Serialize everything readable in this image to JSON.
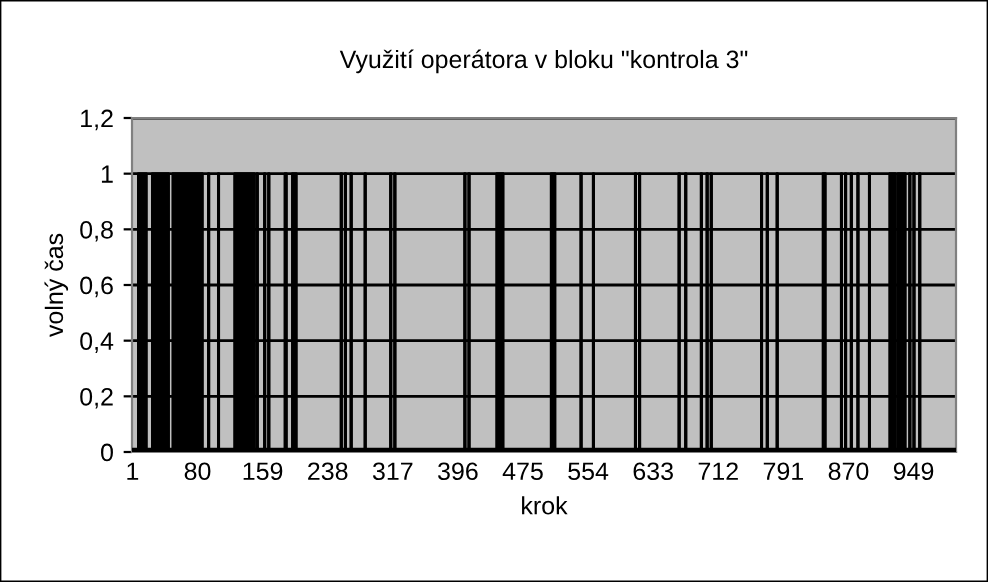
{
  "chart_data": {
    "type": "area",
    "title": "Využití operátora v bloku \"kontrola 3\"",
    "xlabel": "krok",
    "ylabel": "volný čas",
    "x": [
      1,
      8,
      8,
      18,
      18,
      25,
      25,
      45,
      45,
      50,
      50,
      86,
      86,
      93,
      93,
      94,
      94,
      105,
      105,
      106,
      106,
      125,
      125,
      149,
      149,
      152,
      152,
      153,
      153,
      161,
      161,
      162,
      162,
      166,
      166,
      167,
      167,
      186,
      186,
      188,
      188,
      195,
      195,
      200,
      200,
      254,
      254,
      255,
      255,
      259,
      259,
      260,
      260,
      266,
      266,
      267,
      267,
      283,
      283,
      284,
      284,
      314,
      314,
      315,
      315,
      319,
      319,
      320,
      320,
      404,
      404,
      405,
      405,
      409,
      409,
      410,
      410,
      443,
      443,
      451,
      451,
      509,
      509,
      514,
      514,
      545,
      545,
      546,
      546,
      560,
      560,
      561,
      561,
      611,
      611,
      612,
      612,
      616,
      616,
      617,
      617,
      664,
      664,
      665,
      665,
      672,
      672,
      673,
      673,
      691,
      691,
      692,
      692,
      698,
      698,
      699,
      699,
      703,
      703,
      704,
      704,
      764,
      764,
      765,
      765,
      771,
      771,
      772,
      772,
      783,
      783,
      784,
      784,
      839,
      839,
      842,
      842,
      861,
      861,
      862,
      862,
      866,
      866,
      867,
      867,
      873,
      873,
      874,
      874,
      881,
      881,
      882,
      882,
      895,
      895,
      896,
      896,
      920,
      920,
      927,
      927,
      930,
      930,
      939,
      939,
      944,
      944,
      945,
      945,
      949,
      949,
      950,
      950,
      956,
      956,
      957,
      957,
      1000
    ],
    "values": [
      0,
      0,
      1,
      1,
      0,
      0,
      1,
      1,
      0,
      0,
      1,
      1,
      0,
      0,
      1,
      1,
      0,
      0,
      1,
      1,
      0,
      0,
      1,
      1,
      0,
      0,
      1,
      1,
      0,
      0,
      1,
      1,
      0,
      0,
      1,
      1,
      0,
      0,
      1,
      1,
      0,
      0,
      1,
      1,
      0,
      0,
      1,
      1,
      0,
      0,
      1,
      1,
      0,
      0,
      1,
      1,
      0,
      0,
      1,
      1,
      0,
      0,
      1,
      1,
      0,
      0,
      1,
      1,
      0,
      0,
      1,
      1,
      0,
      0,
      1,
      1,
      0,
      0,
      1,
      1,
      0,
      0,
      1,
      1,
      0,
      0,
      1,
      1,
      0,
      0,
      1,
      1,
      0,
      0,
      1,
      1,
      0,
      0,
      1,
      1,
      0,
      0,
      1,
      1,
      0,
      0,
      1,
      1,
      0,
      0,
      1,
      1,
      0,
      0,
      1,
      1,
      0,
      0,
      1,
      1,
      0,
      0,
      1,
      1,
      0,
      0,
      1,
      1,
      0,
      0,
      1,
      1,
      0,
      0,
      1,
      1,
      0,
      0,
      1,
      1,
      0,
      0,
      1,
      1,
      0,
      0,
      1,
      1,
      0,
      0,
      1,
      1,
      0,
      0,
      1,
      1,
      0,
      0,
      1,
      1,
      0,
      0,
      1,
      1,
      0,
      0,
      1,
      1,
      0,
      0,
      1,
      1,
      0,
      0,
      1,
      1,
      0,
      0
    ],
    "color": "#000000",
    "xlim": [
      0.5,
      1000.5
    ],
    "xticks": [
      1,
      80,
      159,
      238,
      317,
      396,
      475,
      554,
      633,
      712,
      791,
      870,
      949
    ],
    "ylim": [
      0,
      1.2
    ],
    "yticks": [
      0,
      {
        "value": 0.2,
        "label": "0,2"
      },
      {
        "value": 0.4,
        "label": "0,4"
      },
      {
        "value": 0.6,
        "label": "0,6"
      },
      {
        "value": 0.8,
        "label": "0,8"
      },
      1,
      {
        "value": 1.2,
        "label": "1,2"
      }
    ],
    "grid": "y",
    "legend": false
  }
}
